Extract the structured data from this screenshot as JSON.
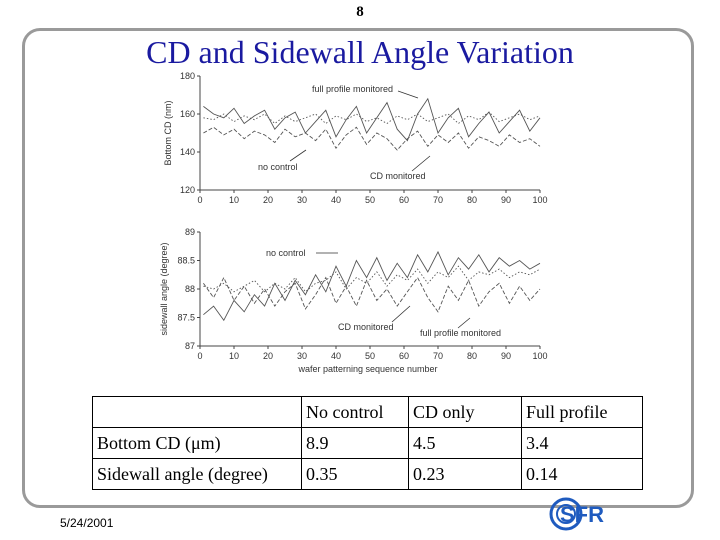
{
  "page_number": "8",
  "slide_title": "CD and Sidewall Angle Variation",
  "footer_date": "5/24/2001",
  "logo_text": "SFR",
  "colors": {
    "title": "#1a1aa0",
    "logo_blue": "#1f5bbf",
    "trace": "#555555"
  },
  "chart_data": [
    {
      "type": "line",
      "ylabel": "Bottom CD (nm)",
      "xlabel": "",
      "xlim": [
        0,
        100
      ],
      "ylim": [
        120,
        180
      ],
      "x_ticks": [
        "0",
        "10",
        "20",
        "30",
        "40",
        "50",
        "60",
        "70",
        "80",
        "90",
        "100"
      ],
      "y_ticks": [
        "180",
        "160",
        "140",
        "120"
      ],
      "annotations": [
        "full profile monitored",
        "no control",
        "CD monitored"
      ],
      "x": [
        1,
        4,
        7,
        10,
        13,
        16,
        19,
        22,
        25,
        28,
        31,
        34,
        37,
        40,
        43,
        46,
        49,
        52,
        55,
        58,
        61,
        64,
        67,
        70,
        73,
        76,
        79,
        82,
        85,
        88,
        91,
        94,
        97,
        100
      ],
      "series": [
        {
          "values": [
            164,
            160,
            158,
            163,
            155,
            159,
            162,
            152,
            158,
            161,
            150,
            156,
            162,
            148,
            157,
            164,
            150,
            158,
            166,
            152,
            146,
            160,
            168,
            150,
            158,
            163,
            148,
            155,
            161,
            150,
            156,
            162,
            151,
            158
          ]
        },
        {
          "values": [
            150,
            153,
            149,
            152,
            147,
            151,
            149,
            145,
            152,
            148,
            150,
            146,
            152,
            142,
            149,
            153,
            144,
            150,
            147,
            141,
            147,
            151,
            143,
            149,
            145,
            150,
            142,
            148,
            146,
            143,
            149,
            145,
            147,
            143
          ]
        },
        {
          "values": [
            158,
            157,
            160,
            156,
            159,
            157,
            160,
            155,
            159,
            156,
            158,
            160,
            155,
            159,
            157,
            160,
            156,
            158,
            155,
            159,
            157,
            160,
            156,
            158,
            160,
            155,
            159,
            157,
            161,
            156,
            158,
            160,
            157,
            159
          ]
        }
      ]
    },
    {
      "type": "line",
      "ylabel": "sidewall angle (degree)",
      "xlabel": "wafer patterning sequence number",
      "xlim": [
        0,
        100
      ],
      "ylim": [
        87,
        89
      ],
      "x_ticks": [
        "0",
        "10",
        "20",
        "30",
        "40",
        "50",
        "60",
        "70",
        "80",
        "90",
        "100"
      ],
      "y_ticks": [
        "89",
        "88.5",
        "88",
        "87.5",
        "87"
      ],
      "annotations": [
        "no control",
        "CD monitored",
        "full profile monitored"
      ],
      "x": [
        1,
        4,
        7,
        10,
        13,
        16,
        19,
        22,
        25,
        28,
        31,
        34,
        37,
        40,
        43,
        46,
        49,
        52,
        55,
        58,
        61,
        64,
        67,
        70,
        73,
        76,
        79,
        82,
        85,
        88,
        91,
        94,
        97,
        100
      ],
      "series": [
        {
          "values": [
            87.55,
            87.7,
            87.45,
            87.8,
            87.6,
            87.9,
            87.7,
            88.1,
            87.8,
            88.15,
            87.9,
            88.25,
            87.95,
            88.4,
            88.05,
            88.5,
            88.2,
            88.55,
            88.15,
            88.45,
            88.2,
            88.6,
            88.3,
            88.65,
            88.25,
            88.55,
            88.35,
            88.6,
            88.3,
            88.55,
            88.4,
            88.5,
            88.35,
            88.45
          ]
        },
        {
          "values": [
            88.1,
            87.85,
            88.2,
            87.8,
            88.05,
            87.75,
            88.0,
            87.7,
            87.95,
            88.1,
            87.65,
            87.9,
            88.2,
            87.75,
            88.05,
            87.7,
            88.15,
            87.8,
            88.0,
            87.7,
            87.95,
            88.2,
            87.85,
            87.6,
            88.05,
            87.8,
            88.15,
            87.7,
            87.95,
            88.1,
            87.75,
            88.05,
            87.8,
            88.0
          ]
        },
        {
          "values": [
            88.05,
            88.0,
            88.1,
            87.95,
            88.05,
            88.15,
            87.95,
            88.1,
            88.0,
            88.2,
            87.95,
            88.1,
            88.15,
            88.3,
            88.0,
            88.2,
            88.1,
            88.3,
            88.05,
            88.25,
            88.15,
            88.35,
            88.1,
            88.3,
            88.2,
            88.4,
            88.15,
            88.3,
            88.25,
            88.35,
            88.2,
            88.3,
            88.25,
            88.35
          ]
        }
      ]
    }
  ],
  "table": {
    "headers": [
      "",
      "No control",
      "CD only",
      "Full profile"
    ],
    "rows": [
      [
        "Bottom CD (μm)",
        "8.9",
        "4.5",
        "3.4"
      ],
      [
        "Sidewall angle (degree)",
        "0.35",
        "0.23",
        "0.14"
      ]
    ]
  }
}
